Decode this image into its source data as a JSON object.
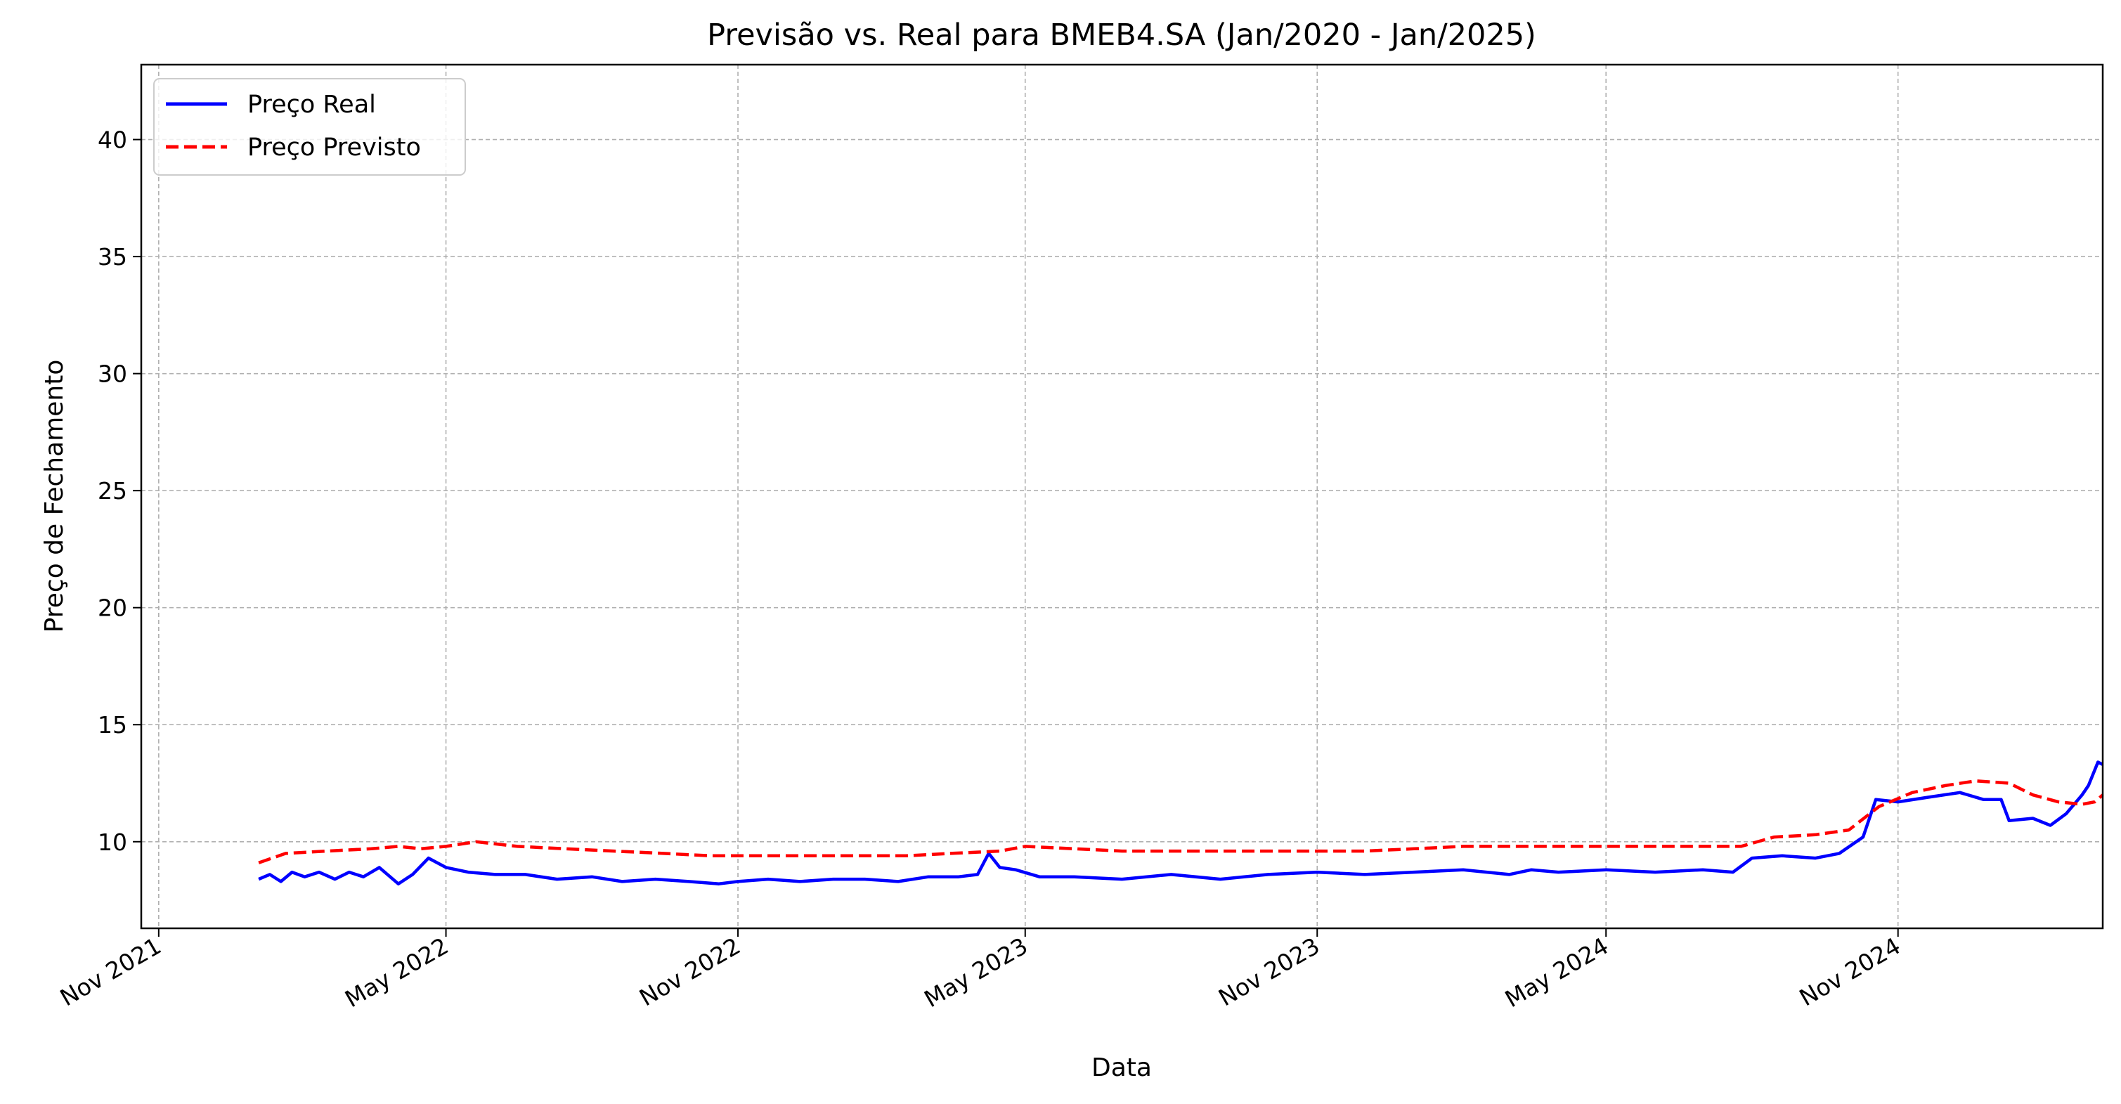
{
  "chart_data": {
    "type": "line",
    "title": "Previsão vs. Real para BMEB4.SA (Jan/2020 - Jan/2025)",
    "xlabel": "Data",
    "ylabel": "Preço de Fechamento",
    "x_ticks": [
      "Nov 2021",
      "May 2022",
      "Nov 2022",
      "May 2023",
      "Nov 2023",
      "May 2024",
      "Nov 2024"
    ],
    "y_ticks": [
      "10",
      "15",
      "20",
      "25",
      "30",
      "35",
      "40"
    ],
    "xlim": [
      "2021-10-21",
      "2025-03-10"
    ],
    "ylim": [
      6.3,
      43.2
    ],
    "grid": true,
    "legend_position": "upper-left",
    "series": [
      {
        "name": "Preço Real",
        "color": "#0000ff",
        "style": "solid",
        "points": [
          [
            "2022-01-03",
            8.4
          ],
          [
            "2022-01-10",
            8.6
          ],
          [
            "2022-01-17",
            8.3
          ],
          [
            "2022-01-24",
            8.7
          ],
          [
            "2022-02-01",
            8.5
          ],
          [
            "2022-02-10",
            8.7
          ],
          [
            "2022-02-20",
            8.4
          ],
          [
            "2022-03-01",
            8.7
          ],
          [
            "2022-03-10",
            8.5
          ],
          [
            "2022-03-20",
            8.9
          ],
          [
            "2022-04-01",
            8.2
          ],
          [
            "2022-04-10",
            8.6
          ],
          [
            "2022-04-20",
            9.3
          ],
          [
            "2022-05-01",
            8.9
          ],
          [
            "2022-05-15",
            8.7
          ],
          [
            "2022-06-01",
            8.6
          ],
          [
            "2022-06-20",
            8.6
          ],
          [
            "2022-07-10",
            8.4
          ],
          [
            "2022-08-01",
            8.5
          ],
          [
            "2022-08-20",
            8.3
          ],
          [
            "2022-09-10",
            8.4
          ],
          [
            "2022-10-01",
            8.3
          ],
          [
            "2022-10-20",
            8.2
          ],
          [
            "2022-11-01",
            8.3
          ],
          [
            "2022-11-20",
            8.4
          ],
          [
            "2022-12-10",
            8.3
          ],
          [
            "2022-12-31",
            8.4
          ],
          [
            "2023-01-20",
            8.4
          ],
          [
            "2023-02-10",
            8.3
          ],
          [
            "2023-03-01",
            8.5
          ],
          [
            "2023-03-20",
            8.5
          ],
          [
            "2023-04-01",
            8.6
          ],
          [
            "2023-04-08",
            9.5
          ],
          [
            "2023-04-15",
            8.9
          ],
          [
            "2023-04-25",
            8.8
          ],
          [
            "2023-05-10",
            8.5
          ],
          [
            "2023-06-01",
            8.5
          ],
          [
            "2023-07-01",
            8.4
          ],
          [
            "2023-08-01",
            8.6
          ],
          [
            "2023-09-01",
            8.4
          ],
          [
            "2023-10-01",
            8.6
          ],
          [
            "2023-11-01",
            8.7
          ],
          [
            "2023-12-01",
            8.6
          ],
          [
            "2024-01-01",
            8.7
          ],
          [
            "2024-02-01",
            8.8
          ],
          [
            "2024-03-01",
            8.6
          ],
          [
            "2024-03-15",
            8.8
          ],
          [
            "2024-04-01",
            8.7
          ],
          [
            "2024-05-01",
            8.8
          ],
          [
            "2024-06-01",
            8.7
          ],
          [
            "2024-07-01",
            8.8
          ],
          [
            "2024-07-20",
            8.7
          ],
          [
            "2024-08-01",
            9.3
          ],
          [
            "2024-08-20",
            9.4
          ],
          [
            "2024-09-10",
            9.3
          ],
          [
            "2024-09-25",
            9.5
          ],
          [
            "2024-10-10",
            10.2
          ],
          [
            "2024-10-18",
            11.8
          ],
          [
            "2024-11-01",
            11.7
          ],
          [
            "2024-11-20",
            11.9
          ],
          [
            "2024-12-10",
            12.1
          ],
          [
            "2024-12-25",
            11.8
          ],
          [
            "2025-01-05",
            11.8
          ],
          [
            "2025-01-10",
            10.9
          ],
          [
            "2025-01-25",
            11.0
          ],
          [
            "2025-02-05",
            10.7
          ],
          [
            "2025-02-15",
            11.2
          ],
          [
            "2025-02-25",
            12.0
          ],
          [
            "2025-03-01",
            12.4
          ],
          [
            "2025-03-07",
            13.4
          ],
          [
            "2025-03-10",
            13.3
          ]
        ]
      },
      {
        "name": "Preço Previsto",
        "color": "#ff0000",
        "style": "dashed",
        "points": [
          [
            "2022-01-03",
            9.1
          ],
          [
            "2022-01-20",
            9.5
          ],
          [
            "2022-02-15",
            9.6
          ],
          [
            "2022-03-15",
            9.7
          ],
          [
            "2022-04-01",
            9.8
          ],
          [
            "2022-04-15",
            9.7
          ],
          [
            "2022-05-01",
            9.8
          ],
          [
            "2022-05-20",
            10.0
          ],
          [
            "2022-06-15",
            9.8
          ],
          [
            "2022-07-15",
            9.7
          ],
          [
            "2022-08-15",
            9.6
          ],
          [
            "2022-09-15",
            9.5
          ],
          [
            "2022-10-15",
            9.4
          ],
          [
            "2022-11-15",
            9.4
          ],
          [
            "2022-12-15",
            9.4
          ],
          [
            "2023-01-15",
            9.4
          ],
          [
            "2023-02-15",
            9.4
          ],
          [
            "2023-03-15",
            9.5
          ],
          [
            "2023-04-15",
            9.6
          ],
          [
            "2023-05-01",
            9.8
          ],
          [
            "2023-06-01",
            9.7
          ],
          [
            "2023-07-01",
            9.6
          ],
          [
            "2023-08-01",
            9.6
          ],
          [
            "2023-09-01",
            9.6
          ],
          [
            "2023-10-01",
            9.6
          ],
          [
            "2023-11-01",
            9.6
          ],
          [
            "2023-12-01",
            9.6
          ],
          [
            "2024-01-01",
            9.7
          ],
          [
            "2024-02-01",
            9.8
          ],
          [
            "2024-03-01",
            9.8
          ],
          [
            "2024-04-01",
            9.8
          ],
          [
            "2024-05-01",
            9.8
          ],
          [
            "2024-06-01",
            9.8
          ],
          [
            "2024-07-01",
            9.8
          ],
          [
            "2024-07-25",
            9.8
          ],
          [
            "2024-08-15",
            10.2
          ],
          [
            "2024-09-10",
            10.3
          ],
          [
            "2024-10-01",
            10.5
          ],
          [
            "2024-10-20",
            11.5
          ],
          [
            "2024-11-10",
            12.1
          ],
          [
            "2024-12-01",
            12.4
          ],
          [
            "2024-12-20",
            12.6
          ],
          [
            "2025-01-10",
            12.5
          ],
          [
            "2025-01-25",
            12.0
          ],
          [
            "2025-02-10",
            11.7
          ],
          [
            "2025-02-25",
            11.6
          ],
          [
            "2025-03-05",
            11.7
          ],
          [
            "2025-03-10",
            12.0
          ]
        ]
      }
    ]
  }
}
